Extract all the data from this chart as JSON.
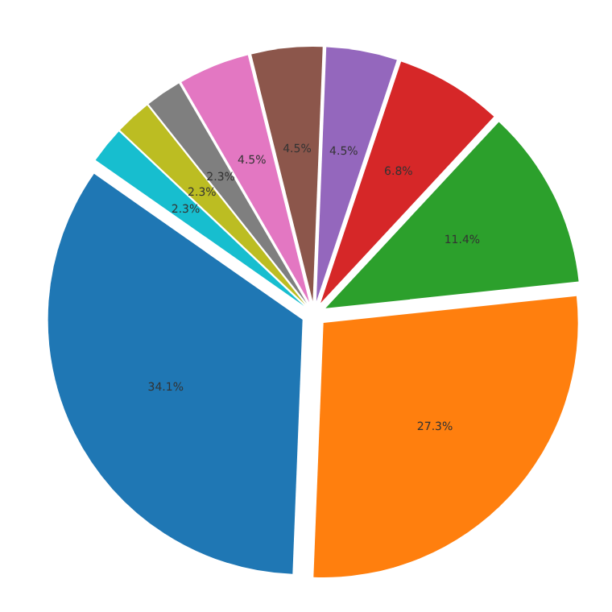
{
  "chart_data": {
    "type": "pie",
    "categories": [
      null,
      null,
      null,
      null,
      null,
      null,
      null,
      null,
      null,
      null
    ],
    "values": [
      34.1,
      27.3,
      11.4,
      6.8,
      4.5,
      4.5,
      4.5,
      2.3,
      2.3,
      2.3
    ],
    "colors": [
      "#1f77b4",
      "#ff7f0e",
      "#2ca02c",
      "#d62728",
      "#9467bd",
      "#8c564b",
      "#e377c2",
      "#7f7f7f",
      "#bcbd22",
      "#17becf"
    ],
    "value_labels": [
      "34.1%",
      "27.3%",
      "11.4%",
      "6.8%",
      "4.5%",
      "4.5%",
      "4.5%",
      "2.3%",
      "2.3%",
      "2.3%"
    ],
    "legend": false
  }
}
